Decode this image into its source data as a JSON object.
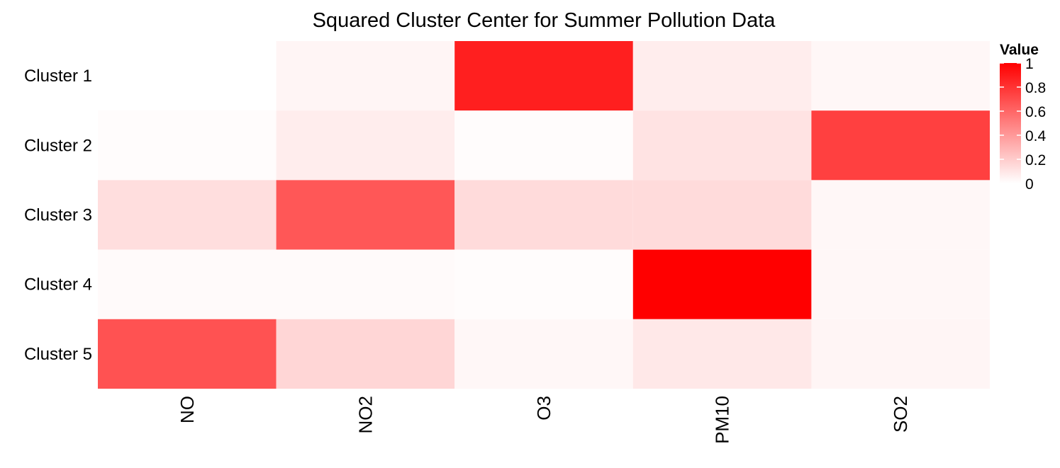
{
  "chart_data": {
    "type": "heatmap",
    "title": "Squared Cluster Center for Summer Pollution Data",
    "xlabel": "",
    "ylabel": "",
    "columns": [
      "NO",
      "NO2",
      "O3",
      "PM10",
      "SO2"
    ],
    "rows": [
      "Cluster 1",
      "Cluster 2",
      "Cluster 3",
      "Cluster 4",
      "Cluster 5"
    ],
    "values": [
      [
        0.0,
        0.04,
        0.88,
        0.07,
        0.03
      ],
      [
        0.01,
        0.07,
        0.01,
        0.11,
        0.75
      ],
      [
        0.13,
        0.66,
        0.14,
        0.14,
        0.03
      ],
      [
        0.02,
        0.02,
        0.01,
        1.0,
        0.03
      ],
      [
        0.68,
        0.16,
        0.03,
        0.09,
        0.04
      ]
    ],
    "legend": {
      "title": "Value",
      "ticks": [
        "0",
        "0.2",
        "0.4",
        "0.6",
        "0.8",
        "1"
      ],
      "tick_values": [
        0,
        0.2,
        0.4,
        0.6,
        0.8,
        1
      ],
      "position": "right"
    },
    "value_range": [
      0,
      1
    ],
    "colors": {
      "low": "#ffffff",
      "high": "#ff0000"
    },
    "grid": false
  }
}
